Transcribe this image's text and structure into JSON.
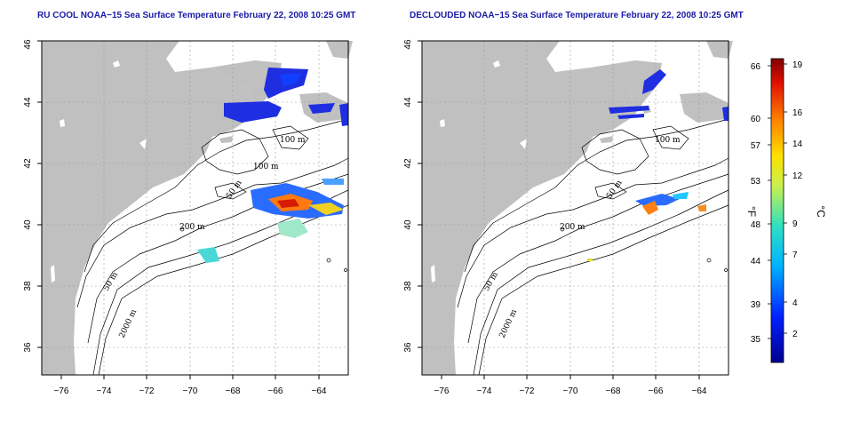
{
  "titles": {
    "left": "RU COOL NOAA−15 Sea Surface Temperature February 22, 2008 10:25 GMT",
    "right": "DECLOUDED NOAA−15 Sea Surface Temperature February 22, 2008 10:25 GMT"
  },
  "axes": {
    "x_ticks": [
      "−76",
      "−74",
      "−72",
      "−70",
      "−68",
      "−66",
      "−64"
    ],
    "y_ticks": [
      "36",
      "38",
      "40",
      "42",
      "44",
      "46"
    ]
  },
  "isobaths": {
    "left": [
      "100 m",
      "100 m",
      "50 m",
      "200 m",
      "50 m",
      "2000 m"
    ],
    "right": [
      "100 m",
      "50 m",
      "200 m",
      "50 m",
      "2000 m"
    ]
  },
  "colorbar": {
    "f_label": "°F",
    "c_label": "°C",
    "f_ticks": [
      "66",
      "60",
      "57",
      "53",
      "48",
      "44",
      "39",
      "35"
    ],
    "c_ticks": [
      "19",
      "16",
      "14",
      "12",
      "9",
      "7",
      "4",
      "2"
    ]
  },
  "colors": {
    "land": "#c0c0c0",
    "title": "#1a1aa6",
    "cold": "#1a2fd6",
    "warm": "#e64a19"
  }
}
